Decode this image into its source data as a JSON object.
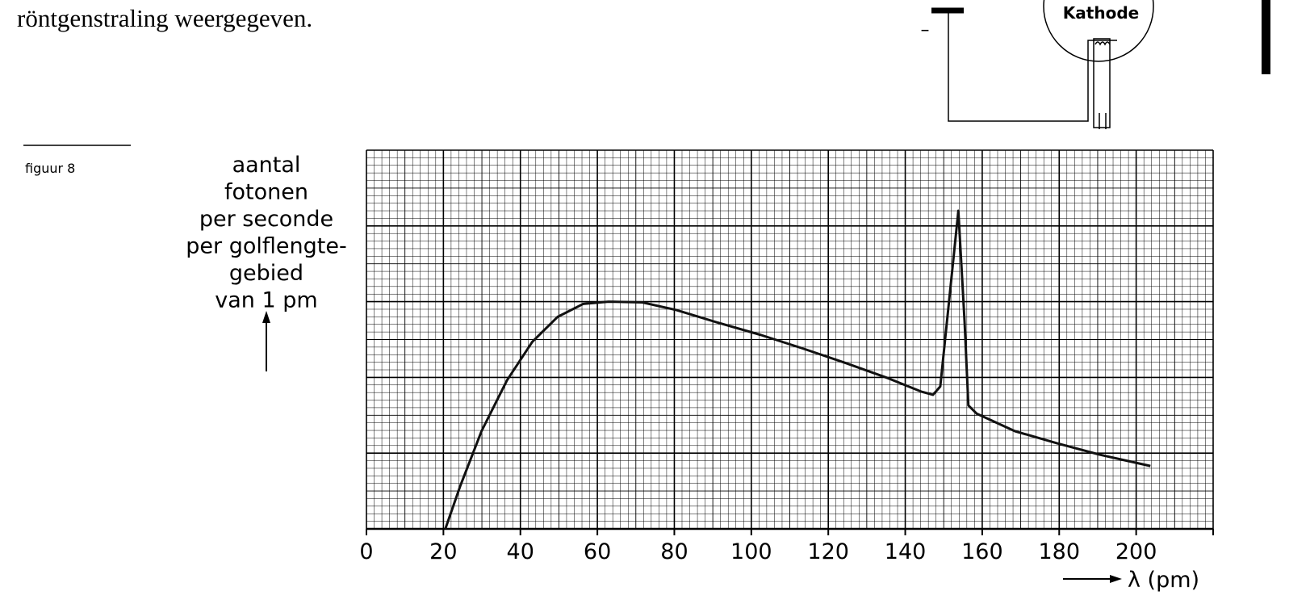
{
  "document": {
    "text": "röntgenstraling  weergegeven.",
    "figure_label": "figuur 8",
    "diagram_label": "Kathode",
    "minus_sign": "–"
  },
  "chart_data": {
    "type": "line",
    "ylabel": [
      "aantal",
      "fotonen",
      "per seconde",
      "per golflengte-",
      "gebied",
      "van 1 pm"
    ],
    "xlabel": "λ (pm)",
    "x": [
      20.5,
      24.4,
      29.9,
      36.5,
      43.1,
      49.7,
      56.3,
      62.9,
      71.7,
      80.5,
      91.5,
      102.5,
      113.5,
      124.5,
      135.5,
      144.3,
      147.2,
      149.1,
      153.8,
      155.4,
      156.4,
      158.6,
      168.5,
      179.5,
      190.5,
      203.7
    ],
    "series": [
      {
        "color": "#111111",
        "values": [
          0,
          0.57,
          1.29,
          1.96,
          2.47,
          2.8,
          2.97,
          3.0,
          2.99,
          2.89,
          2.72,
          2.56,
          2.38,
          2.19,
          1.99,
          1.81,
          1.77,
          1.88,
          4.2,
          2.75,
          1.63,
          1.52,
          1.29,
          1.13,
          0.98,
          0.83
        ]
      }
    ],
    "xlim": [
      0,
      220
    ],
    "xticks": [
      0,
      20,
      40,
      60,
      80,
      100,
      120,
      140,
      160,
      180,
      200
    ],
    "ylim": [
      0,
      5
    ],
    "grid": true
  }
}
